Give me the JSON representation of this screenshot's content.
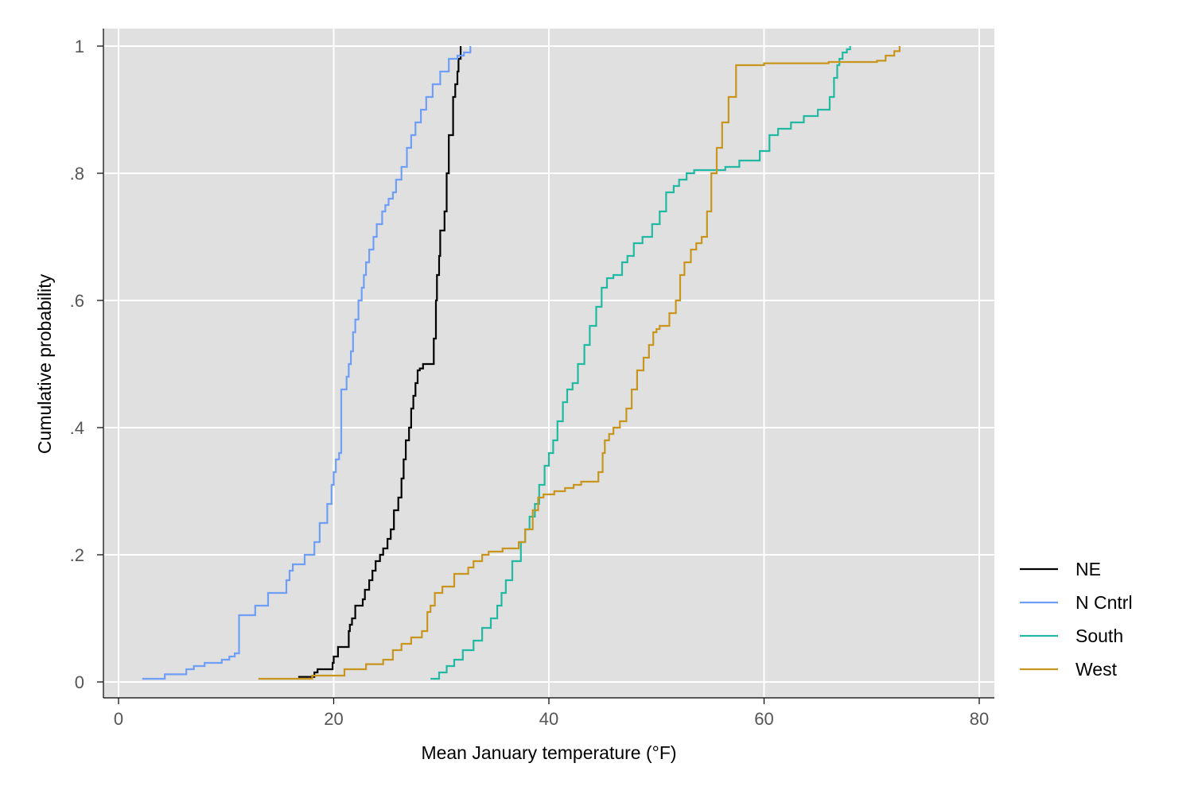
{
  "chart_data": {
    "type": "line",
    "title": "",
    "xlabel": "Mean January temperature (°F)",
    "ylabel": "Cumulative probability",
    "xlim": [
      0,
      80
    ],
    "ylim": [
      0,
      1
    ],
    "x_ticks": [
      0,
      20,
      40,
      60,
      80
    ],
    "x_tick_labels": [
      "0",
      "20",
      "40",
      "60",
      "80"
    ],
    "y_ticks": [
      0,
      0.2,
      0.4,
      0.6,
      0.8,
      1
    ],
    "y_tick_labels": [
      "0",
      ".2",
      ".4",
      ".6",
      ".8",
      "1"
    ],
    "grid": true,
    "legend_position": "right",
    "background": "#e0e0e0",
    "series": [
      {
        "name": "NE",
        "color": "#000000",
        "x": [
          16.7,
          18.2,
          18.5,
          19.9,
          20.0,
          20.4,
          21.4,
          21.5,
          21.7,
          22.0,
          22.7,
          22.9,
          23.3,
          23.6,
          23.9,
          24.3,
          24.6,
          25.0,
          25.3,
          25.6,
          26.0,
          26.3,
          26.5,
          26.7,
          27.0,
          27.2,
          27.4,
          27.6,
          27.8,
          28.0,
          28.3,
          29.3,
          29.5,
          29.6,
          29.8,
          29.9,
          30.3,
          30.5,
          30.7,
          31.1,
          31.3,
          31.5,
          31.6,
          31.8
        ],
        "y": [
          0.008,
          0.015,
          0.02,
          0.03,
          0.04,
          0.055,
          0.08,
          0.09,
          0.1,
          0.12,
          0.13,
          0.145,
          0.16,
          0.175,
          0.19,
          0.2,
          0.21,
          0.225,
          0.24,
          0.27,
          0.29,
          0.32,
          0.35,
          0.38,
          0.4,
          0.43,
          0.45,
          0.47,
          0.49,
          0.493,
          0.5,
          0.54,
          0.6,
          0.64,
          0.67,
          0.71,
          0.74,
          0.8,
          0.86,
          0.92,
          0.94,
          0.96,
          0.98,
          1.0
        ]
      },
      {
        "name": "N Cntrl",
        "color": "#6f9ef7",
        "x": [
          2.2,
          4.3,
          6.3,
          7.0,
          8.0,
          9.6,
          10.3,
          10.8,
          11.2,
          12.7,
          13.9,
          15.6,
          15.9,
          16.2,
          17.3,
          18.2,
          18.7,
          19.4,
          19.8,
          20.0,
          20.2,
          20.5,
          20.7,
          21.2,
          21.4,
          21.6,
          21.8,
          22.0,
          22.3,
          22.6,
          22.8,
          23.0,
          23.3,
          23.7,
          24.0,
          24.5,
          24.8,
          25.1,
          25.5,
          25.8,
          26.3,
          26.8,
          27.2,
          27.6,
          28.1,
          28.6,
          29.2,
          29.9,
          30.7,
          31.5,
          32.1,
          32.7
        ],
        "y": [
          0.005,
          0.012,
          0.02,
          0.025,
          0.03,
          0.035,
          0.04,
          0.045,
          0.105,
          0.12,
          0.14,
          0.16,
          0.175,
          0.185,
          0.2,
          0.22,
          0.25,
          0.28,
          0.31,
          0.33,
          0.35,
          0.36,
          0.46,
          0.48,
          0.5,
          0.52,
          0.55,
          0.57,
          0.6,
          0.62,
          0.64,
          0.66,
          0.68,
          0.7,
          0.72,
          0.74,
          0.75,
          0.76,
          0.77,
          0.79,
          0.81,
          0.84,
          0.86,
          0.88,
          0.9,
          0.92,
          0.94,
          0.96,
          0.98,
          0.985,
          0.99,
          1.0
        ]
      },
      {
        "name": "South",
        "color": "#21b9a2",
        "x": [
          29.0,
          29.8,
          30.5,
          31.2,
          32.0,
          33.0,
          33.8,
          34.6,
          35.2,
          35.6,
          36.0,
          36.6,
          37.4,
          37.8,
          38.2,
          38.7,
          39.1,
          39.6,
          40.0,
          40.4,
          40.8,
          41.3,
          41.7,
          42.2,
          42.7,
          43.3,
          43.8,
          44.4,
          44.9,
          45.4,
          46.0,
          46.8,
          47.3,
          47.9,
          48.7,
          49.6,
          50.3,
          50.9,
          51.6,
          52.1,
          52.8,
          53.5,
          54.8,
          56.4,
          57.7,
          59.6,
          60.5,
          61.3,
          62.5,
          63.7,
          65.0,
          66.1,
          66.5,
          66.8,
          67.0,
          67.3,
          67.7,
          68.0
        ],
        "y": [
          0.005,
          0.015,
          0.025,
          0.035,
          0.05,
          0.065,
          0.085,
          0.1,
          0.12,
          0.14,
          0.16,
          0.19,
          0.22,
          0.24,
          0.26,
          0.28,
          0.31,
          0.34,
          0.36,
          0.38,
          0.41,
          0.44,
          0.46,
          0.47,
          0.5,
          0.53,
          0.56,
          0.59,
          0.62,
          0.635,
          0.64,
          0.66,
          0.67,
          0.69,
          0.7,
          0.72,
          0.74,
          0.77,
          0.78,
          0.79,
          0.8,
          0.805,
          0.805,
          0.81,
          0.82,
          0.835,
          0.86,
          0.87,
          0.88,
          0.89,
          0.9,
          0.92,
          0.95,
          0.97,
          0.98,
          0.99,
          0.995,
          1.0
        ]
      },
      {
        "name": "West",
        "color": "#c8961f",
        "x": [
          13.0,
          18.0,
          21.0,
          23.0,
          24.6,
          25.5,
          26.3,
          27.2,
          28.2,
          28.7,
          29.0,
          29.4,
          30.1,
          31.2,
          32.5,
          33.0,
          33.8,
          34.4,
          35.7,
          37.2,
          37.8,
          38.5,
          39.0,
          39.5,
          40.5,
          41.5,
          42.3,
          43.0,
          44.6,
          45.0,
          45.2,
          45.6,
          46.0,
          46.6,
          47.2,
          47.7,
          48.2,
          48.8,
          49.3,
          49.7,
          50.0,
          50.3,
          51.2,
          51.8,
          52.2,
          52.6,
          53.2,
          53.7,
          54.2,
          54.7,
          55.1,
          55.6,
          56.1,
          56.7,
          57.4,
          60.0,
          66.0,
          70.5,
          71.3,
          72.1,
          72.6
        ],
        "y": [
          0.005,
          0.01,
          0.02,
          0.028,
          0.035,
          0.05,
          0.06,
          0.07,
          0.08,
          0.11,
          0.12,
          0.14,
          0.15,
          0.17,
          0.18,
          0.19,
          0.2,
          0.205,
          0.21,
          0.22,
          0.24,
          0.27,
          0.29,
          0.295,
          0.3,
          0.305,
          0.31,
          0.315,
          0.33,
          0.36,
          0.38,
          0.39,
          0.4,
          0.41,
          0.43,
          0.46,
          0.49,
          0.51,
          0.53,
          0.55,
          0.555,
          0.56,
          0.58,
          0.6,
          0.64,
          0.66,
          0.68,
          0.69,
          0.7,
          0.74,
          0.8,
          0.84,
          0.88,
          0.92,
          0.97,
          0.973,
          0.975,
          0.977,
          0.985,
          0.992,
          1.0
        ]
      }
    ]
  }
}
